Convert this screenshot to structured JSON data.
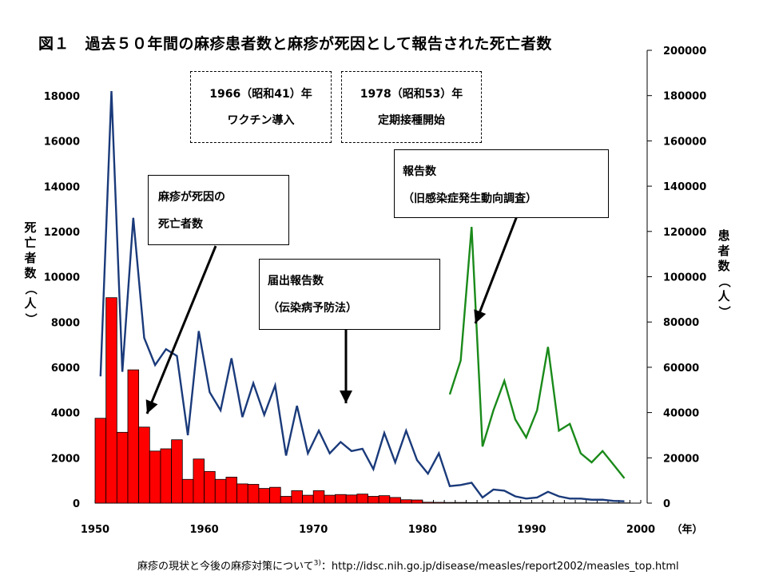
{
  "title": "図１　過去５０年間の麻疹患者数と麻疹が死因として報告された死亡者数",
  "left_axis_label": "死亡者数（人）",
  "right_axis_label": "患者数（人）",
  "x_unit": "（年）",
  "annotations": {
    "vaccine_line1": "1966（昭和41）年",
    "vaccine_line2": "ワクチン導入",
    "routine_line1": "1978（昭和53）年",
    "routine_line2": "定期接種開始",
    "deaths_line1": "麻疹が死因の",
    "deaths_line2": "死亡者数",
    "notified_line1": "届出報告数",
    "notified_line2": "（伝染病予防法）",
    "surveillance_line1": "報告数",
    "surveillance_line2": "（旧感染症発生動向調査）"
  },
  "footnote": {
    "text": "麻疹の現状と今後の麻疹対策について",
    "sup": "3)",
    "url": "：http://idsc.nih.go.jp/disease/measles/report2002/measles_top.html"
  },
  "chart_data": {
    "type": "bar+line",
    "x_range": [
      1950,
      2000
    ],
    "x_ticks": [
      "1950",
      "1960",
      "1970",
      "1980",
      "1990",
      "2000"
    ],
    "y_left": {
      "range": [
        0,
        18000
      ],
      "ticks": [
        "0",
        "2000",
        "4000",
        "6000",
        "8000",
        "10000",
        "12000",
        "14000",
        "16000",
        "18000"
      ]
    },
    "y_right": {
      "range": [
        0,
        200000
      ],
      "ticks": [
        "0",
        "20000",
        "40000",
        "60000",
        "80000",
        "100000",
        "120000",
        "140000",
        "160000",
        "180000",
        "200000"
      ]
    },
    "deaths": {
      "axis": "left",
      "color": "#ff0000",
      "years": [
        1950,
        1951,
        1952,
        1953,
        1954,
        1955,
        1956,
        1957,
        1958,
        1959,
        1960,
        1961,
        1962,
        1963,
        1964,
        1965,
        1966,
        1967,
        1968,
        1969,
        1970,
        1971,
        1972,
        1973,
        1974,
        1975,
        1976,
        1977,
        1978,
        1979,
        1980,
        1981,
        1982,
        1983,
        1984,
        1985,
        1986,
        1987,
        1988,
        1989,
        1990,
        1991,
        1992,
        1993,
        1994,
        1995,
        1996,
        1997,
        1998
      ],
      "values": [
        3750,
        9080,
        3130,
        5890,
        3360,
        2300,
        2400,
        2800,
        1050,
        1950,
        1400,
        1050,
        1150,
        850,
        830,
        650,
        700,
        300,
        550,
        350,
        550,
        350,
        380,
        360,
        400,
        300,
        330,
        250,
        150,
        140,
        40,
        35,
        30,
        30,
        25,
        20,
        20,
        20,
        20,
        15,
        15,
        15,
        10,
        10,
        10,
        10,
        10,
        10,
        10
      ]
    },
    "notified_cases": {
      "axis": "right",
      "color": "#1a3a7a",
      "years": [
        1950,
        1951,
        1952,
        1953,
        1954,
        1955,
        1956,
        1957,
        1958,
        1959,
        1960,
        1961,
        1962,
        1963,
        1964,
        1965,
        1966,
        1967,
        1968,
        1969,
        1970,
        1971,
        1972,
        1973,
        1974,
        1975,
        1976,
        1977,
        1978,
        1979,
        1980,
        1981,
        1982,
        1983,
        1984,
        1985,
        1986,
        1987,
        1988,
        1989,
        1990,
        1991,
        1992,
        1993,
        1994,
        1995,
        1996,
        1997,
        1998
      ],
      "values": [
        56000,
        182000,
        58000,
        126000,
        73000,
        61000,
        68000,
        65000,
        30000,
        76000,
        49000,
        41000,
        64000,
        38000,
        53000,
        39000,
        52000,
        21000,
        43000,
        22000,
        32000,
        22000,
        27000,
        23000,
        24000,
        15000,
        31000,
        18000,
        32000,
        19000,
        13000,
        22000,
        7500,
        8000,
        9000,
        2500,
        6000,
        5500,
        3000,
        2000,
        2500,
        5000,
        3000,
        2000,
        2000,
        1500,
        1500,
        1000,
        800
      ]
    },
    "surveillance_cases": {
      "axis": "right",
      "color": "#1a8a1a",
      "years": [
        1982,
        1983,
        1984,
        1985,
        1986,
        1987,
        1988,
        1989,
        1990,
        1991,
        1992,
        1993,
        1994,
        1995,
        1996,
        1997,
        1998
      ],
      "values": [
        48000,
        63000,
        122000,
        25000,
        41000,
        54000,
        37000,
        29000,
        41000,
        69000,
        32000,
        35000,
        22000,
        18000,
        23000,
        17000,
        11000
      ]
    }
  }
}
